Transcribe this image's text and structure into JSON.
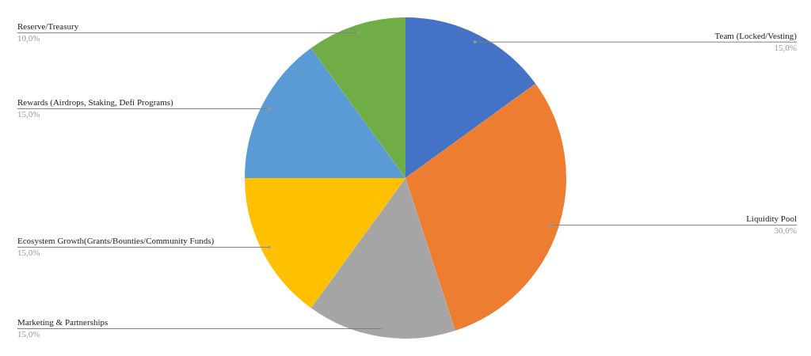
{
  "chart_data": {
    "type": "pie",
    "categories": [
      "Team (Locked/Vesting)",
      "Liquidity Pool",
      "Marketing & Partnerships",
      "Ecosystem Growth(Grants/Bounties/Community Funds)",
      "Rewards (Airdrops, Staking, Defi Programs)",
      "Reserve/Treasury"
    ],
    "values": [
      15,
      30,
      15,
      15,
      15,
      10
    ],
    "colors": [
      "#4472c4",
      "#ed7d31",
      "#a5a5a5",
      "#ffc000",
      "#5b9bd5",
      "#70ad47"
    ],
    "value_labels": [
      "15,0%",
      "30,0%",
      "15,0%",
      "15,0%",
      "15,0%",
      "10,0%"
    ]
  }
}
